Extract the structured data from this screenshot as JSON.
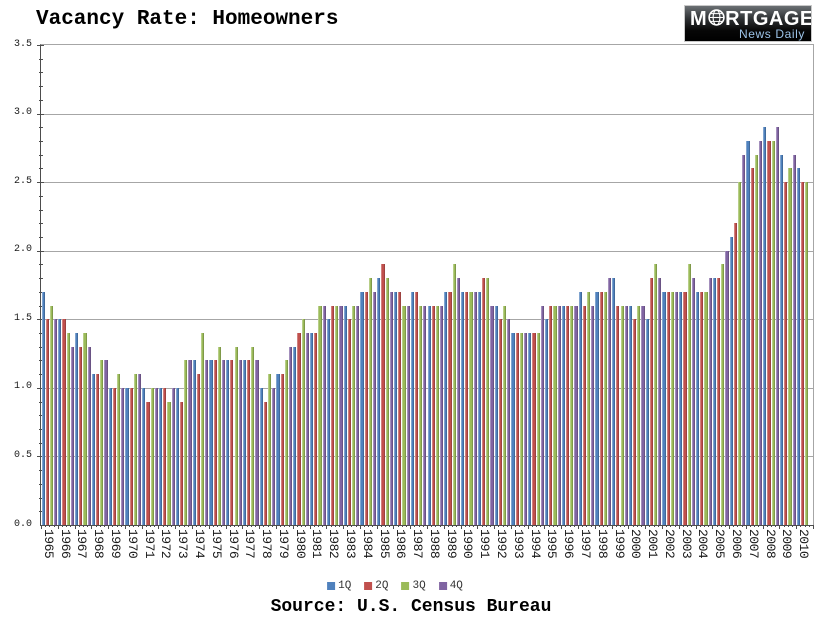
{
  "title": "Vacancy Rate: Homeowners",
  "logo": {
    "brand_prefix": "M",
    "brand_suffix": "RTGAGE",
    "brand_sub": "News Daily",
    "bg_color": "#000000",
    "text_color": "#ffffff",
    "sub_color": "#9cc3e8"
  },
  "source_line": "Source: U.S. Census Bureau",
  "chart_data": {
    "type": "bar",
    "title": "Vacancy Rate: Homeowners",
    "xlabel": "",
    "ylabel": "",
    "ylim": [
      0,
      3.5
    ],
    "ytick_step": 0.5,
    "yminor_step": 0.1,
    "grid": true,
    "legend_position": "bottom",
    "categories": [
      1965,
      1966,
      1967,
      1968,
      1969,
      1970,
      1971,
      1972,
      1973,
      1974,
      1975,
      1976,
      1977,
      1978,
      1979,
      1980,
      1981,
      1982,
      1983,
      1984,
      1985,
      1986,
      1987,
      1988,
      1989,
      1990,
      1991,
      1992,
      1993,
      1994,
      1995,
      1996,
      1997,
      1998,
      1999,
      2000,
      2001,
      2002,
      2003,
      2004,
      2005,
      2006,
      2007,
      2008,
      2009,
      2010
    ],
    "series": [
      {
        "name": "1Q",
        "color": "#4F81BD",
        "values": [
          1.7,
          1.5,
          1.4,
          1.1,
          1.0,
          1.0,
          1.0,
          1.0,
          1.0,
          1.2,
          1.2,
          1.2,
          1.2,
          1.0,
          1.1,
          1.3,
          1.4,
          1.5,
          1.6,
          1.7,
          1.8,
          1.7,
          1.7,
          1.6,
          1.7,
          1.7,
          1.7,
          1.6,
          1.4,
          1.4,
          1.5,
          1.6,
          1.7,
          1.7,
          1.8,
          1.6,
          1.5,
          1.7,
          1.7,
          1.7,
          1.8,
          2.1,
          2.8,
          2.9,
          2.7,
          2.6
        ]
      },
      {
        "name": "2Q",
        "color": "#C0504D",
        "values": [
          1.5,
          1.5,
          1.3,
          1.1,
          1.0,
          1.0,
          0.9,
          1.0,
          0.9,
          1.1,
          1.2,
          1.2,
          1.2,
          0.9,
          1.1,
          1.4,
          1.4,
          1.6,
          1.5,
          1.7,
          1.9,
          1.7,
          1.7,
          1.6,
          1.7,
          1.7,
          1.8,
          1.5,
          1.4,
          1.4,
          1.6,
          1.6,
          1.6,
          1.7,
          1.6,
          1.5,
          1.8,
          1.7,
          1.7,
          1.7,
          1.8,
          2.2,
          2.6,
          2.8,
          2.5,
          2.5
        ]
      },
      {
        "name": "3Q",
        "color": "#9BBB59",
        "values": [
          1.6,
          1.4,
          1.4,
          1.2,
          1.1,
          1.1,
          1.0,
          0.9,
          1.2,
          1.4,
          1.3,
          1.3,
          1.3,
          1.1,
          1.2,
          1.5,
          1.6,
          1.6,
          1.6,
          1.8,
          1.8,
          1.6,
          1.6,
          1.6,
          1.9,
          1.7,
          1.8,
          1.6,
          1.4,
          1.4,
          1.6,
          1.6,
          1.7,
          1.7,
          1.6,
          1.6,
          1.9,
          1.7,
          1.9,
          1.7,
          1.9,
          2.5,
          2.7,
          2.8,
          2.6,
          2.5
        ]
      },
      {
        "name": "4Q",
        "color": "#8064A2",
        "values": [
          1.5,
          1.3,
          1.3,
          1.2,
          1.0,
          1.1,
          1.0,
          1.0,
          1.2,
          1.2,
          1.2,
          1.2,
          1.2,
          1.0,
          1.3,
          1.4,
          1.6,
          1.6,
          1.6,
          1.7,
          1.7,
          1.6,
          1.6,
          1.6,
          1.8,
          1.7,
          1.6,
          1.5,
          1.4,
          1.6,
          1.6,
          1.6,
          1.6,
          1.8,
          1.6,
          1.6,
          1.8,
          1.7,
          1.8,
          1.8,
          2.0,
          2.7,
          2.8,
          2.9,
          2.7,
          null
        ]
      }
    ],
    "ytick_labels": [
      "0.0",
      "0.5",
      "1.0",
      "1.5",
      "2.0",
      "2.5",
      "3.0",
      "3.5"
    ]
  }
}
